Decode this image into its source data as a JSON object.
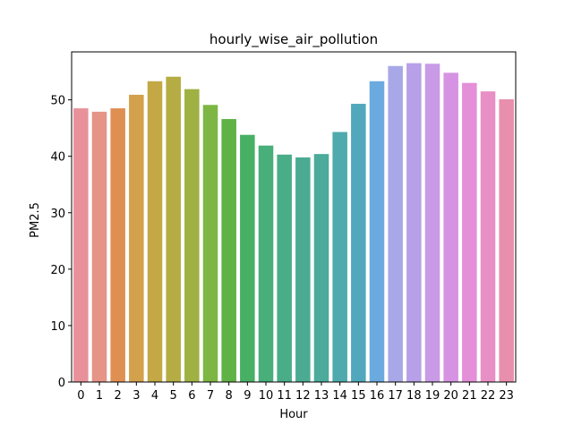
{
  "chart_data": {
    "type": "bar",
    "title": "hourly_wise_air_pollution",
    "xlabel": "Hour",
    "ylabel": "PM2.5",
    "categories": [
      "0",
      "1",
      "2",
      "3",
      "4",
      "5",
      "6",
      "7",
      "8",
      "9",
      "10",
      "11",
      "12",
      "13",
      "14",
      "15",
      "16",
      "17",
      "18",
      "19",
      "20",
      "21",
      "22",
      "23"
    ],
    "values": [
      48.5,
      47.9,
      48.5,
      50.9,
      53.3,
      54.1,
      51.9,
      49.1,
      46.6,
      43.8,
      41.9,
      40.3,
      39.8,
      40.4,
      44.3,
      49.3,
      53.3,
      56.0,
      56.5,
      56.4,
      54.8,
      53.0,
      51.5,
      50.1
    ],
    "ylim": [
      0,
      58.5
    ],
    "yticks": [
      0,
      10,
      20,
      30,
      40,
      50
    ],
    "grid": false,
    "legend": "none",
    "colors": [
      "#e8919a",
      "#e59487",
      "#e08f53",
      "#d3a04c",
      "#c4a845",
      "#b5ad43",
      "#9fb143",
      "#7db643",
      "#5fb245",
      "#48b064",
      "#48ae7a",
      "#49ad88",
      "#4bab92",
      "#4cab9b",
      "#4eaaac",
      "#51a8bd",
      "#6aaadf",
      "#a8a8e8",
      "#b8a0e8",
      "#c99ae6",
      "#d793e3",
      "#e48fd8",
      "#e88fc5",
      "#e98fae"
    ]
  }
}
